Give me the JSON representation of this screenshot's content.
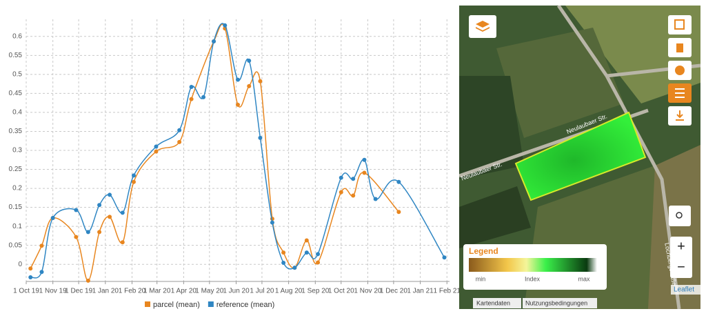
{
  "chart_data": {
    "type": "line",
    "xlim": [
      "2019-10-01",
      "2021-02-04"
    ],
    "ylim": [
      -0.045,
      0.645
    ],
    "xticks": [
      {
        "value": "2019-10-01",
        "label": "1 Oct 19"
      },
      {
        "value": "2019-11-01",
        "label": "1 Nov 19"
      },
      {
        "value": "2019-12-01",
        "label": "1 Dec 19"
      },
      {
        "value": "2020-01-01",
        "label": "1 Jan 20"
      },
      {
        "value": "2020-02-01",
        "label": "1 Feb 20"
      },
      {
        "value": "2020-03-01",
        "label": "1 Mar 20"
      },
      {
        "value": "2020-04-01",
        "label": "1 Apr 20"
      },
      {
        "value": "2020-05-01",
        "label": "1 May 20"
      },
      {
        "value": "2020-06-01",
        "label": "1 Jun 20"
      },
      {
        "value": "2020-07-01",
        "label": "1 Jul 20"
      },
      {
        "value": "2020-08-01",
        "label": "1 Aug 20"
      },
      {
        "value": "2020-09-01",
        "label": "1 Sep 20"
      },
      {
        "value": "2020-10-01",
        "label": "1 Oct 20"
      },
      {
        "value": "2020-11-01",
        "label": "1 Nov 20"
      },
      {
        "value": "2020-12-01",
        "label": "1 Dec 20"
      },
      {
        "value": "2021-01-01",
        "label": "1 Jan 21"
      },
      {
        "value": "2021-02-01",
        "label": "1 Feb 21"
      }
    ],
    "yticks": [
      0,
      0.05,
      0.1,
      0.15,
      0.2,
      0.25,
      0.3,
      0.35,
      0.4,
      0.45,
      0.5,
      0.55,
      0.6
    ],
    "grid": true,
    "legend": "bottom",
    "series": [
      {
        "name": "parcel (mean)",
        "color": "#e8861f",
        "x": [
          "2019-10-06",
          "2019-10-19",
          "2019-11-01",
          "2019-11-28",
          "2019-12-12",
          "2019-12-25",
          "2020-01-06",
          "2020-01-21",
          "2020-02-03",
          "2020-02-29",
          "2020-03-27",
          "2020-04-10",
          "2020-05-06",
          "2020-05-19",
          "2020-06-03",
          "2020-06-16",
          "2020-06-29",
          "2020-07-13",
          "2020-07-26",
          "2020-08-08",
          "2020-08-22",
          "2020-09-04",
          "2020-10-01",
          "2020-10-15",
          "2020-10-28",
          "2020-12-07"
        ],
        "values": [
          -0.011,
          0.049,
          0.122,
          0.072,
          -0.043,
          0.085,
          0.125,
          0.058,
          0.217,
          0.297,
          0.322,
          0.435,
          0.587,
          0.621,
          0.42,
          0.469,
          0.482,
          0.12,
          0.031,
          -0.009,
          0.063,
          0.005,
          0.19,
          0.181,
          0.241,
          0.138
        ]
      },
      {
        "name": "reference (mean)",
        "color": "#2f86c3",
        "x": [
          "2019-10-06",
          "2019-10-19",
          "2019-11-01",
          "2019-11-28",
          "2019-12-12",
          "2019-12-25",
          "2020-01-06",
          "2020-01-21",
          "2020-02-03",
          "2020-02-29",
          "2020-03-27",
          "2020-04-10",
          "2020-04-24",
          "2020-05-06",
          "2020-05-19",
          "2020-06-03",
          "2020-06-16",
          "2020-06-29",
          "2020-07-13",
          "2020-07-26",
          "2020-08-08",
          "2020-08-22",
          "2020-09-04",
          "2020-10-01",
          "2020-10-15",
          "2020-10-28",
          "2020-11-10",
          "2020-12-07",
          "2021-01-29"
        ],
        "values": [
          -0.034,
          -0.02,
          0.122,
          0.143,
          0.085,
          0.156,
          0.183,
          0.136,
          0.234,
          0.31,
          0.353,
          0.467,
          0.44,
          0.587,
          0.629,
          0.486,
          0.536,
          0.333,
          0.11,
          0.004,
          -0.009,
          0.031,
          0.027,
          0.228,
          0.225,
          0.275,
          0.172,
          0.217,
          0.018
        ]
      }
    ]
  },
  "map": {
    "road_label_1": "Neulaubaer Str.",
    "road_label_2": "Neulaubaer Str.",
    "road_label_3": "Lochbergstraße",
    "legend_title": "Legend",
    "legend_min": "min",
    "legend_index": "Index",
    "legend_max": "max",
    "zoom_in": "+",
    "zoom_out": "−",
    "attribution": "Leaflet",
    "tab_1": "Kartendaten",
    "tab_2": "Nutzungsbedingungen"
  }
}
